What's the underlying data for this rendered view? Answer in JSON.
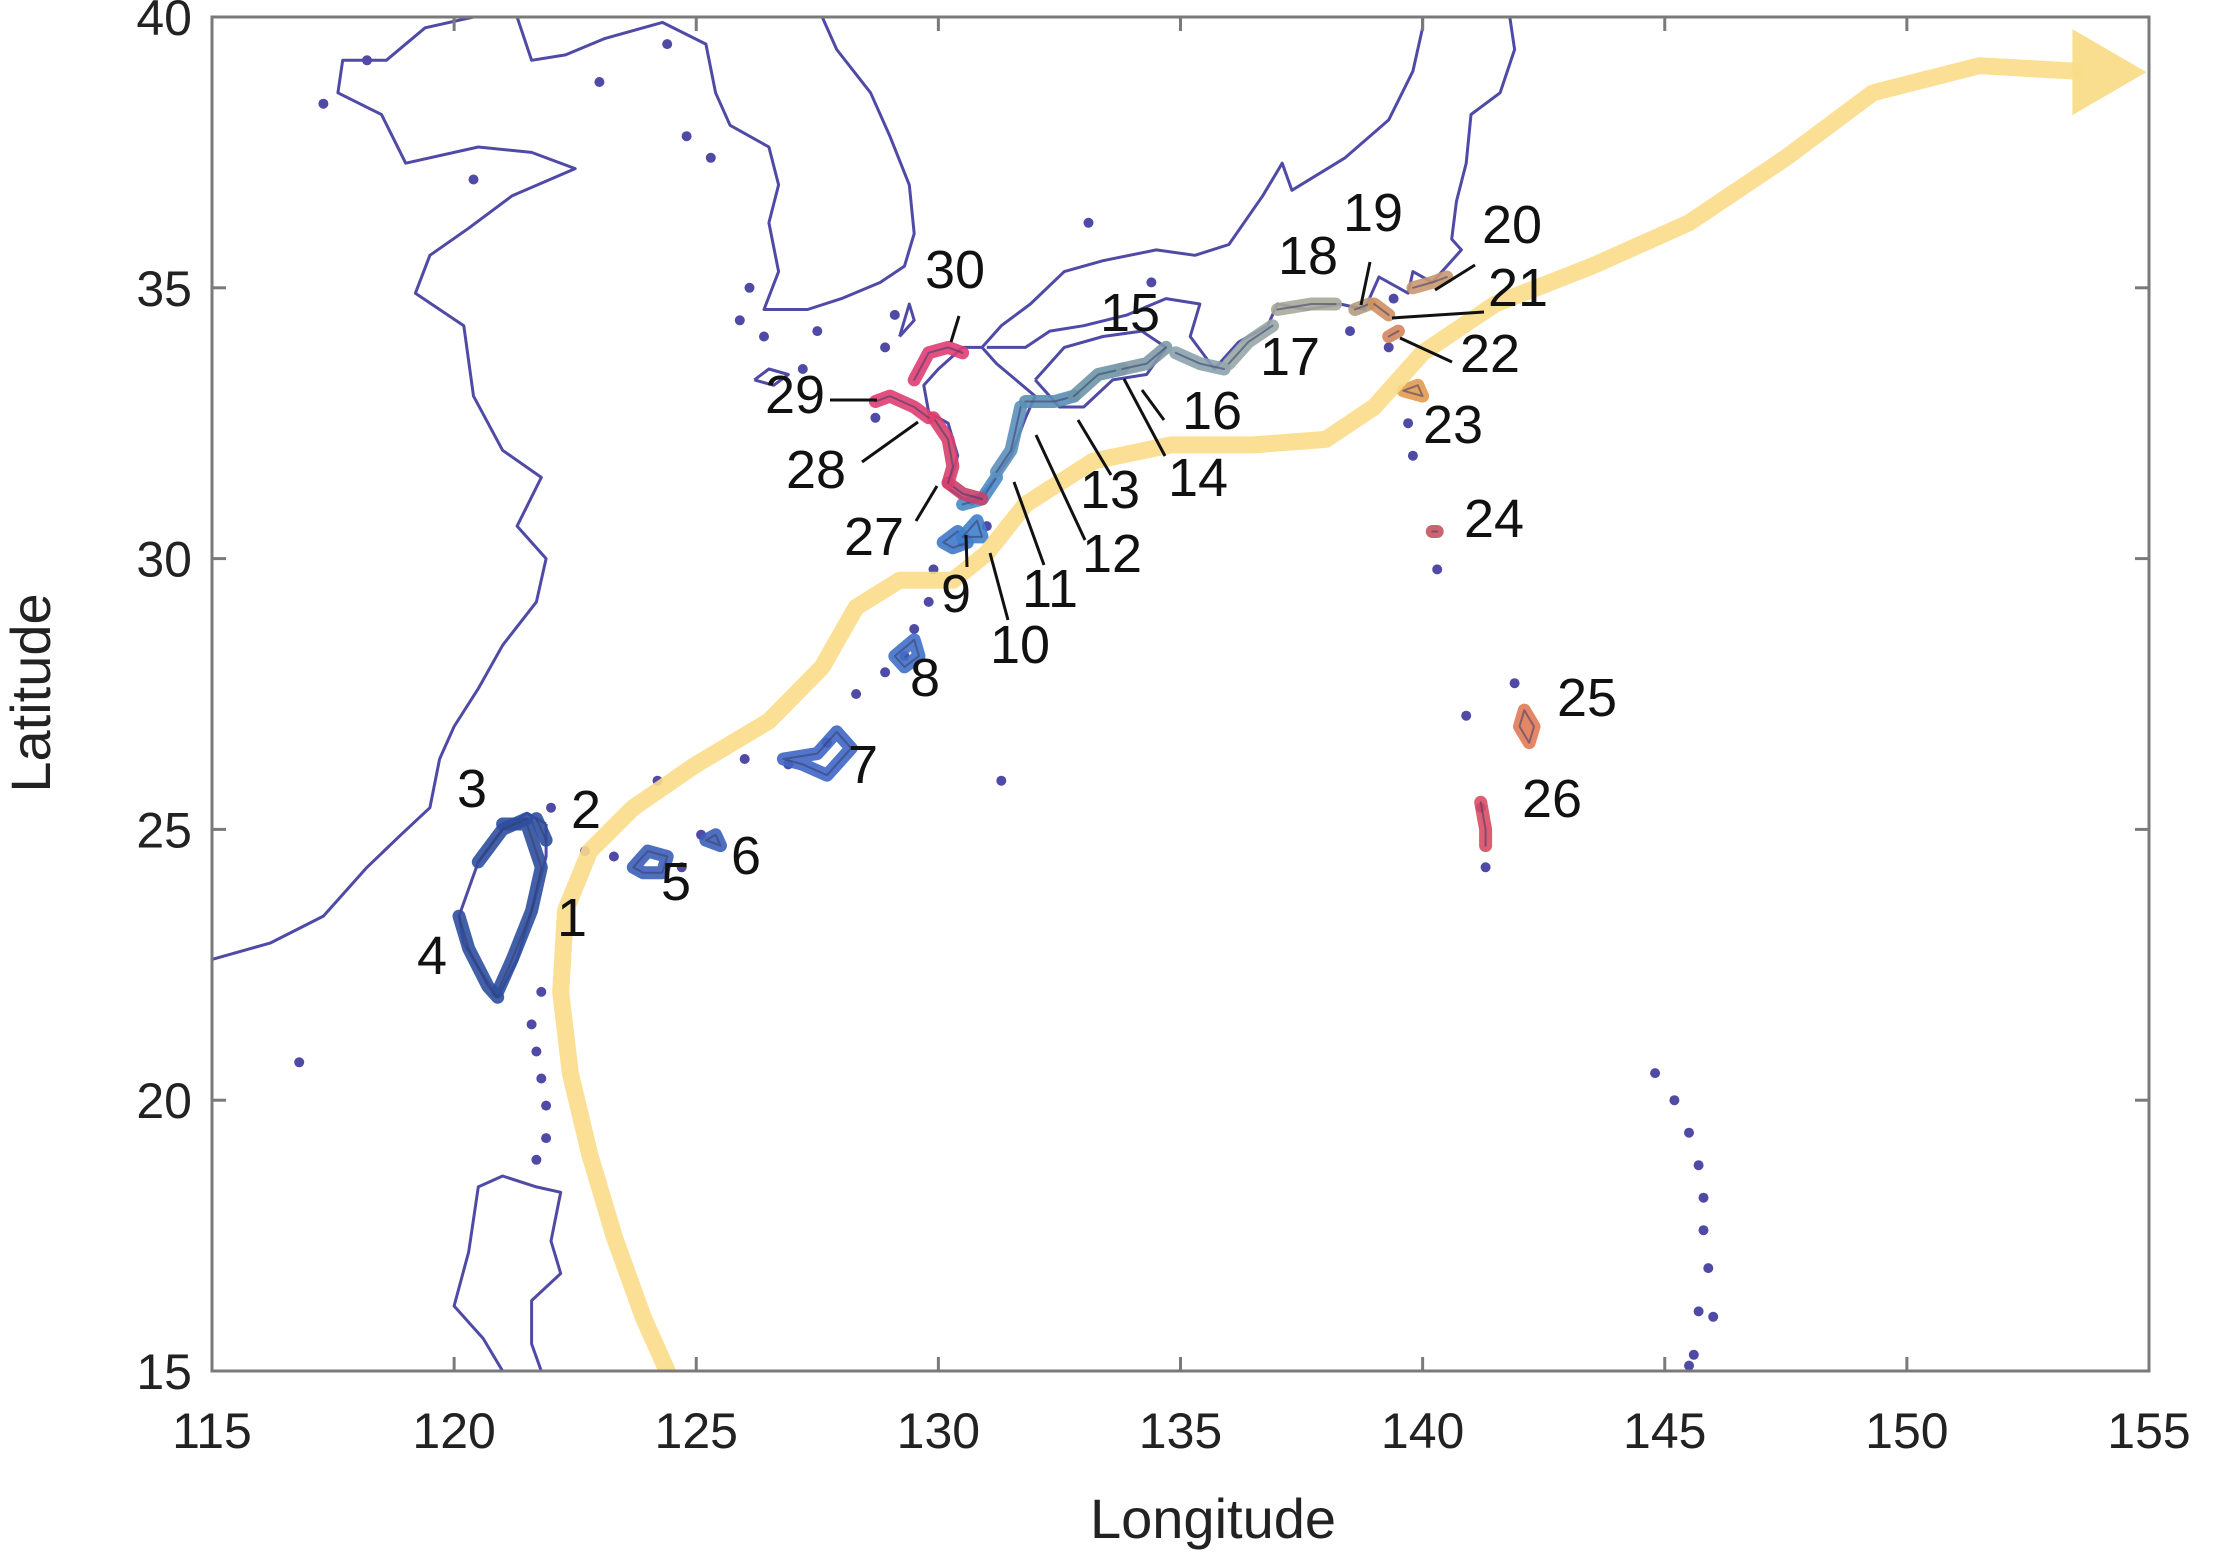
{
  "chart_data": {
    "type": "map",
    "xlabel": "Longitude",
    "ylabel": "Latitude",
    "xlim": [
      115,
      155
    ],
    "ylim": [
      15,
      40
    ],
    "xticks": [
      115,
      120,
      125,
      130,
      135,
      140,
      145,
      150,
      155
    ],
    "yticks": [
      15,
      20,
      25,
      30,
      35,
      40
    ],
    "grid": false,
    "colors": {
      "coastline": "#4f4aa6",
      "current_path": "#f9dc8a",
      "axis": "#7a7a7a",
      "leader": "#111111"
    },
    "current_path": [
      [
        124.4,
        15.0
      ],
      [
        123.9,
        16.0
      ],
      [
        123.3,
        17.5
      ],
      [
        122.8,
        19.0
      ],
      [
        122.4,
        20.5
      ],
      [
        122.2,
        22.0
      ],
      [
        122.3,
        23.5
      ],
      [
        122.8,
        24.6
      ],
      [
        123.7,
        25.4
      ],
      [
        125.0,
        26.2
      ],
      [
        126.5,
        27.0
      ],
      [
        127.6,
        28.0
      ],
      [
        128.3,
        29.1
      ],
      [
        129.2,
        29.6
      ],
      [
        130.3,
        29.6
      ],
      [
        131.0,
        30.1
      ],
      [
        131.8,
        31.0
      ],
      [
        133.2,
        31.8
      ],
      [
        134.8,
        32.1
      ],
      [
        136.5,
        32.1
      ],
      [
        138.0,
        32.2
      ],
      [
        139.0,
        32.8
      ],
      [
        140.0,
        33.8
      ],
      [
        141.5,
        34.7
      ],
      [
        143.5,
        35.4
      ],
      [
        145.5,
        36.2
      ],
      [
        147.5,
        37.4
      ],
      [
        149.3,
        38.6
      ],
      [
        151.5,
        39.1
      ],
      [
        153.5,
        39.0
      ]
    ],
    "regions": [
      {
        "id": "1",
        "lon": 122.0,
        "lat": 23.6,
        "color": "#2e4f9f"
      },
      {
        "id": "2",
        "lon": 121.9,
        "lat": 25.1,
        "color": "#2e4f9f"
      },
      {
        "id": "3",
        "lon": 121.3,
        "lat": 25.2,
        "color": "#2e4f9f"
      },
      {
        "id": "4",
        "lon": 120.8,
        "lat": 22.1,
        "color": "#2e4f9f"
      },
      {
        "id": "5",
        "lon": 124.1,
        "lat": 24.4,
        "color": "#3b5fb8"
      },
      {
        "id": "6",
        "lon": 125.3,
        "lat": 24.8,
        "color": "#3b5fb8"
      },
      {
        "id": "7",
        "lon": 127.8,
        "lat": 26.4,
        "color": "#3d66c4"
      },
      {
        "id": "8",
        "lon": 129.4,
        "lat": 28.3,
        "color": "#4070c8"
      },
      {
        "id": "9",
        "lon": 130.2,
        "lat": 30.4,
        "color": "#3e79c9"
      },
      {
        "id": "10",
        "lon": 130.6,
        "lat": 30.6,
        "color": "#3e80cc"
      },
      {
        "id": "11",
        "lon": 131.0,
        "lat": 31.3,
        "color": "#4a8ac6"
      },
      {
        "id": "12",
        "lon": 131.4,
        "lat": 32.1,
        "color": "#5b90bb"
      },
      {
        "id": "13",
        "lon": 132.4,
        "lat": 32.9,
        "color": "#5a8fb4"
      },
      {
        "id": "14",
        "lon": 133.6,
        "lat": 33.3,
        "color": "#6c95a6"
      },
      {
        "id": "15",
        "lon": 134.5,
        "lat": 33.7,
        "color": "#7f9aa6"
      },
      {
        "id": "16",
        "lon": 135.8,
        "lat": 33.6,
        "color": "#8aa3ad"
      },
      {
        "id": "17",
        "lon": 136.5,
        "lat": 34.3,
        "color": "#97a6a6"
      },
      {
        "id": "18",
        "lon": 137.8,
        "lat": 34.7,
        "color": "#a8a89a"
      },
      {
        "id": "19",
        "lon": 138.7,
        "lat": 34.6,
        "color": "#b39d7e"
      },
      {
        "id": "20",
        "lon": 140.1,
        "lat": 35.0,
        "color": "#c99870"
      },
      {
        "id": "21",
        "lon": 139.3,
        "lat": 34.5,
        "color": "#cf8f62"
      },
      {
        "id": "22",
        "lon": 139.4,
        "lat": 34.2,
        "color": "#d4855c"
      },
      {
        "id": "23",
        "lon": 139.8,
        "lat": 33.1,
        "color": "#e29a4e"
      },
      {
        "id": "24",
        "lon": 140.2,
        "lat": 30.5,
        "color": "#c6535f"
      },
      {
        "id": "25",
        "lon": 142.2,
        "lat": 26.8,
        "color": "#e07a55"
      },
      {
        "id": "26",
        "lon": 141.2,
        "lat": 25.0,
        "color": "#d94b64"
      },
      {
        "id": "27",
        "lon": 130.2,
        "lat": 31.3,
        "color": "#c9406a"
      },
      {
        "id": "28",
        "lon": 129.6,
        "lat": 32.6,
        "color": "#d8406c"
      },
      {
        "id": "29",
        "lon": 128.6,
        "lat": 33.0,
        "color": "#df3e70"
      },
      {
        "id": "30",
        "lon": 129.9,
        "lat": 33.8,
        "color": "#e03c72"
      }
    ]
  }
}
